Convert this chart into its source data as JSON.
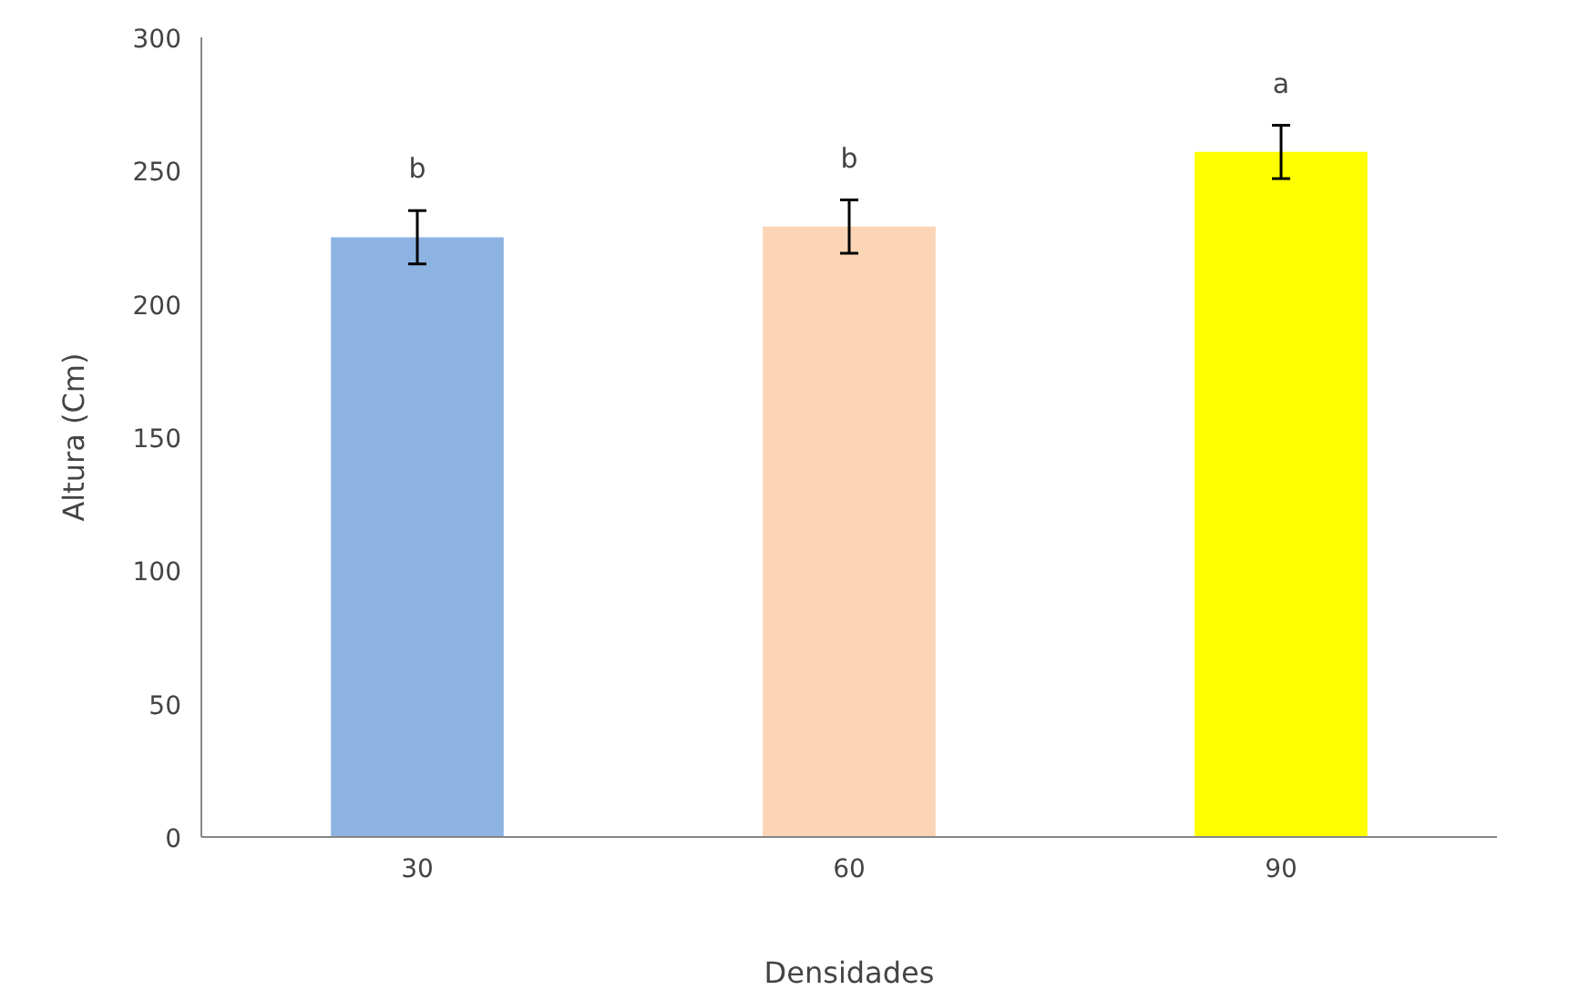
{
  "chart_data": {
    "type": "bar",
    "xlabel": "Densidades",
    "ylabel": "Altura (Cm)",
    "categories": [
      "30",
      "60",
      "90"
    ],
    "values": [
      225,
      229,
      257
    ],
    "colors": [
      "#8db3e2",
      "#fbd5b5",
      "#ffff00"
    ],
    "errors": [
      10,
      10,
      10
    ],
    "ylim": [
      0,
      300
    ],
    "yticks": [
      0,
      50,
      100,
      150,
      200,
      250,
      300
    ],
    "grid": false,
    "annotations": [
      "b",
      "b",
      "a"
    ]
  }
}
